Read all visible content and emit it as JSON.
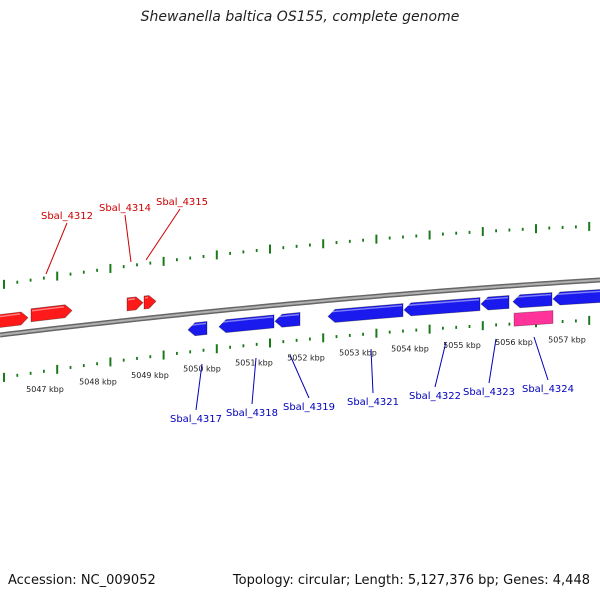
{
  "title": "Shewanella baltica OS155, complete genome",
  "footer": {
    "accession": "Accession: NC_009052",
    "summary": "Topology: circular; Length: 5,127,376 bp; Genes: 4,448"
  },
  "colors": {
    "forward_gene": "#ff1a1a",
    "reverse_gene": "#1a1aee",
    "rna_gene": "#ff3399",
    "tick": "#1a7a1a",
    "forward_label": "#cc0000",
    "reverse_label": "#0000bb",
    "backbone": "#888888"
  },
  "scale": {
    "labels": [
      "5047 kbp",
      "5048 kbp",
      "5049 kbp",
      "5050 kbp",
      "5051 kbp",
      "5052 kbp",
      "5053 kbp",
      "5054 kbp",
      "5055 kbp",
      "5056 kbp",
      "5057 kbp"
    ]
  },
  "forward_genes": [
    {
      "label": "Sbal_4312"
    },
    {
      "label": "Sbal_4314"
    },
    {
      "label": "Sbal_4315"
    }
  ],
  "reverse_genes": [
    {
      "label": "Sbal_4317"
    },
    {
      "label": "Sbal_4318"
    },
    {
      "label": "Sbal_4319"
    },
    {
      "label": "Sbal_4321"
    },
    {
      "label": "Sbal_4322"
    },
    {
      "label": "Sbal_4323"
    },
    {
      "label": "Sbal_4324"
    }
  ]
}
